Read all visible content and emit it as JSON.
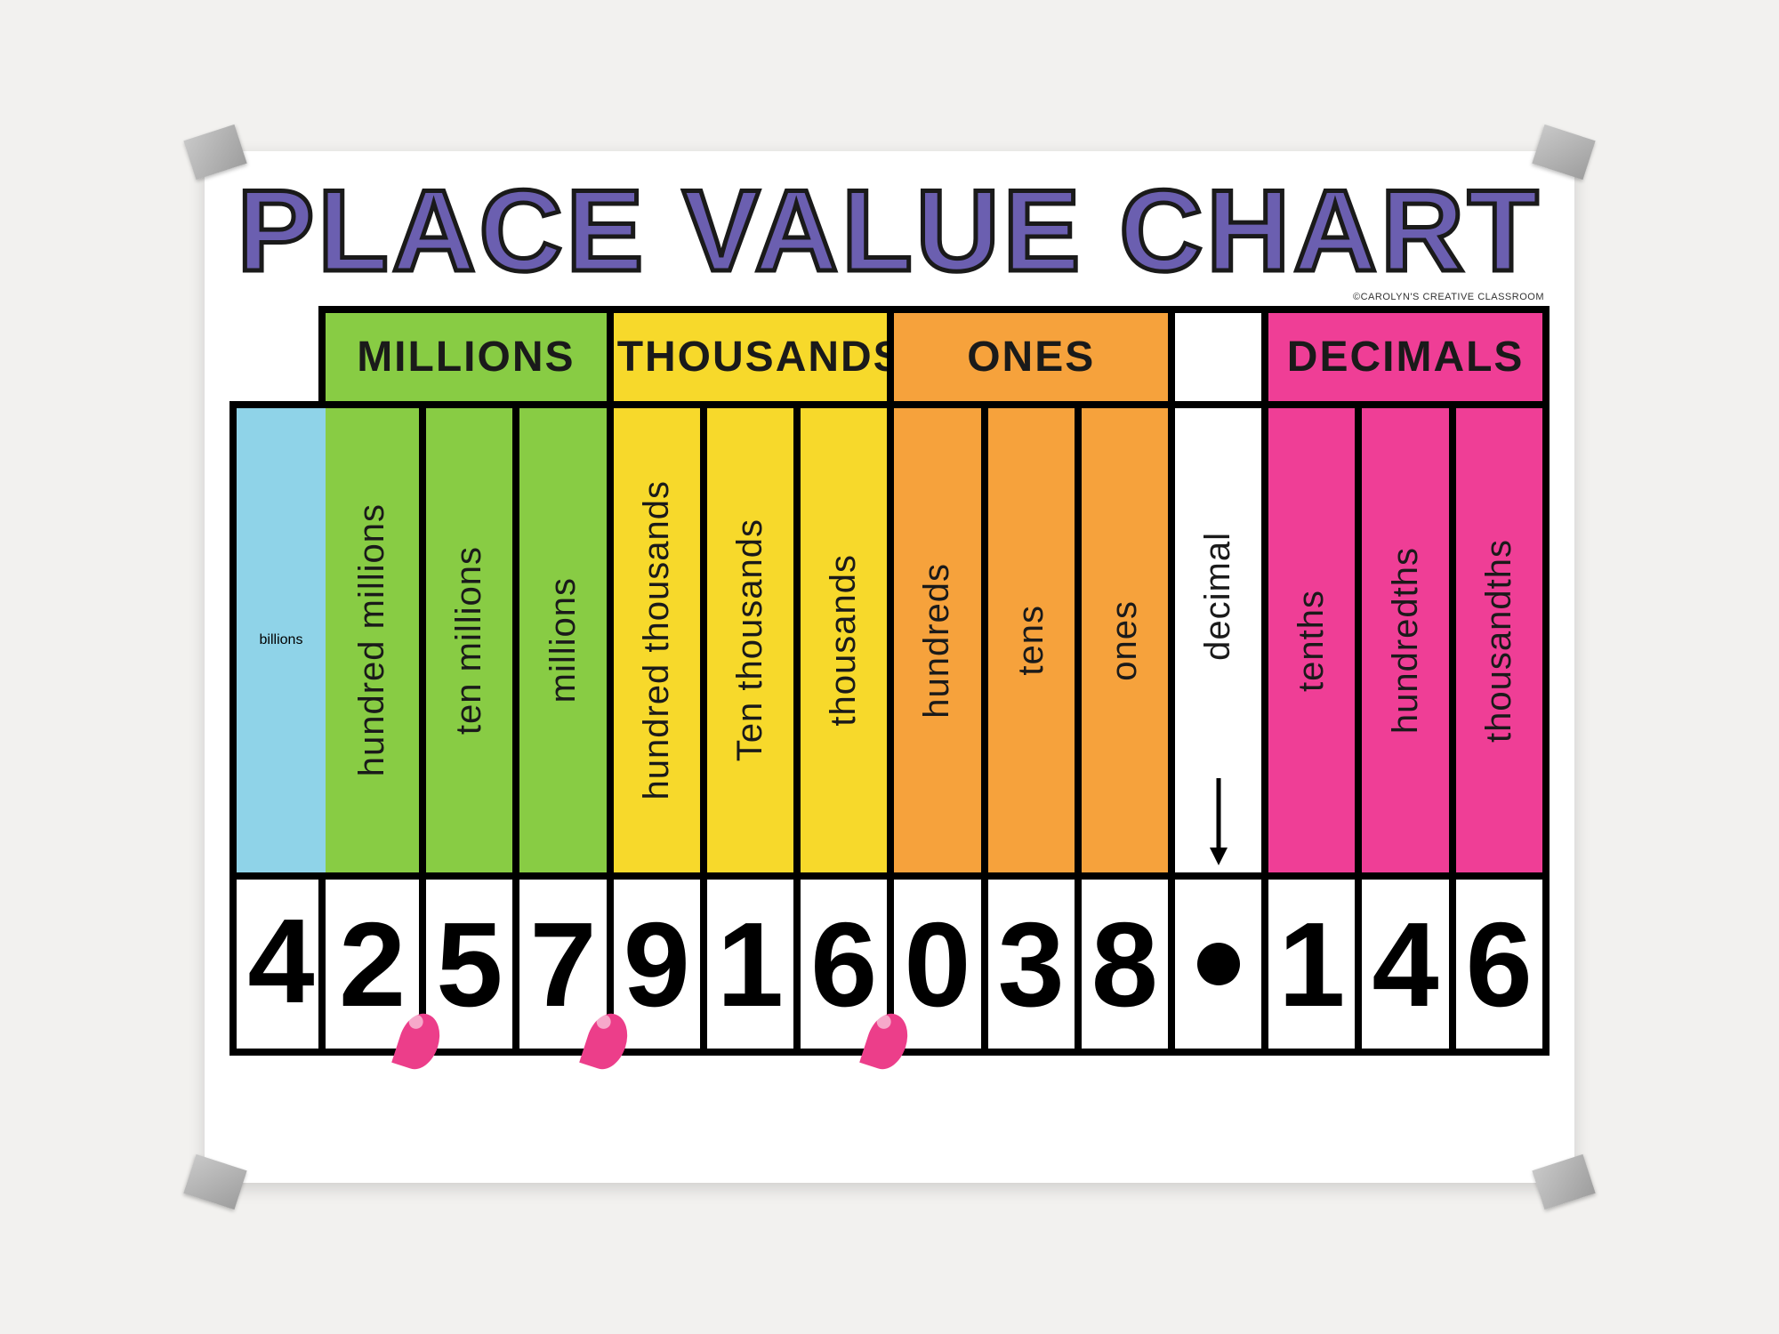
{
  "title": "PLACE VALUE CHART",
  "title_color": "#6b5fb0",
  "credit": "©CAROLYN'S CREATIVE CLASSROOM",
  "background_color": "#f2f1ef",
  "poster_color": "#ffffff",
  "border_color": "#000000",
  "comma_color": "#ec3e8a",
  "col_width_pct": 7.14,
  "groups": [
    {
      "label": "MILLIONS",
      "span": 3,
      "color": "#88cc44"
    },
    {
      "label": "THOUSANDS",
      "span": 3,
      "color": "#f7d92b"
    },
    {
      "label": "ONES",
      "span": 3,
      "color": "#f6a23c"
    },
    {
      "label": "",
      "span": 1,
      "color": "#ffffff"
    },
    {
      "label": "DECIMALS",
      "span": 3,
      "color": "#ef3e96"
    }
  ],
  "columns": [
    {
      "label": "billions",
      "color": "#8fd3e8",
      "digit": "4",
      "outside": true
    },
    {
      "label": "hundred millions",
      "color": "#88cc44",
      "digit": "2",
      "comma_after": true
    },
    {
      "label": "ten millions",
      "color": "#88cc44",
      "digit": "5"
    },
    {
      "label": "millions",
      "color": "#88cc44",
      "digit": "7",
      "comma_after": true
    },
    {
      "label": "hundred thousands",
      "color": "#f7d92b",
      "digit": "9"
    },
    {
      "label": "Ten thousands",
      "color": "#f7d92b",
      "digit": "1"
    },
    {
      "label": "thousands",
      "color": "#f7d92b",
      "digit": "6",
      "comma_after": true
    },
    {
      "label": "hundreds",
      "color": "#f6a23c",
      "digit": "0"
    },
    {
      "label": "tens",
      "color": "#f6a23c",
      "digit": "3"
    },
    {
      "label": "ones",
      "color": "#f6a23c",
      "digit": "8"
    },
    {
      "label": "decimal",
      "color": "#ffffff",
      "digit": "•",
      "is_decimal_point": true,
      "has_arrow": true
    },
    {
      "label": "tenths",
      "color": "#ef3e96",
      "digit": "1"
    },
    {
      "label": "hundredths",
      "color": "#ef3e96",
      "digit": "4"
    },
    {
      "label": "thousandths",
      "color": "#ef3e96",
      "digit": "6"
    }
  ],
  "typography": {
    "title_fontsize": 130,
    "group_fontsize": 48,
    "place_fontsize": 40,
    "digit_fontsize": 135
  }
}
